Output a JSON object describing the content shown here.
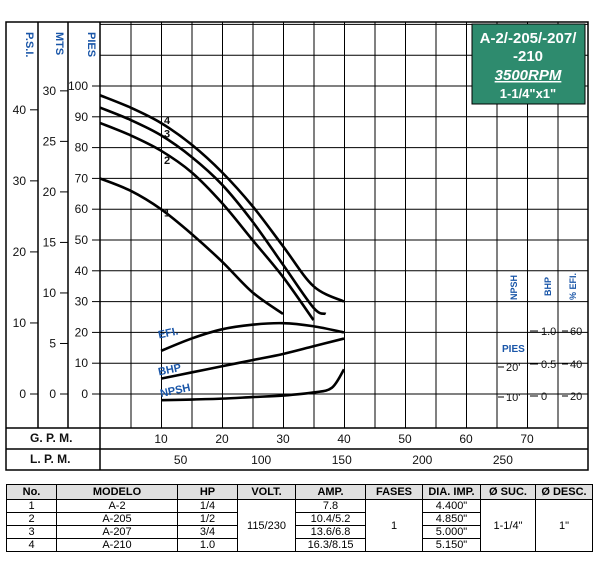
{
  "model_box": {
    "title_line1": "A-2/-205/-207/",
    "title_line2": "-210",
    "rpm": "3500RPM",
    "size": "1-1/4\"x1\"",
    "color": "#2e8b6e"
  },
  "chart_data": {
    "type": "line",
    "left_axes": {
      "psi": {
        "label": "P.S.I.",
        "ticks": [
          0,
          10,
          20,
          30,
          40
        ]
      },
      "mts": {
        "label": "MTS",
        "ticks": [
          0,
          5,
          10,
          15,
          20,
          25,
          30
        ]
      },
      "pies": {
        "label": "PIES",
        "ticks": [
          0,
          10,
          20,
          30,
          40,
          50,
          60,
          70,
          80,
          90,
          100
        ]
      }
    },
    "x_axes": {
      "gpm": {
        "label": "G. P. M.",
        "ticks": [
          10,
          20,
          30,
          40,
          50,
          60,
          70
        ]
      },
      "lpm": {
        "label": "L. P. M.",
        "ticks": [
          50,
          100,
          150,
          200,
          250
        ]
      }
    },
    "right_axes": {
      "npsh": {
        "label": "NPSH",
        "unit": "PIES",
        "ticks": [
          "20'",
          "10'"
        ]
      },
      "bhp": {
        "label": "BHP",
        "ticks": [
          "1.0",
          "0.5",
          "0"
        ]
      },
      "efi": {
        "label": "% EFI.",
        "ticks": [
          "60",
          "40",
          "20"
        ]
      }
    },
    "xlim_gpm": [
      0,
      75
    ],
    "ylim_pies": [
      -5,
      120
    ],
    "grid": true,
    "series": [
      {
        "name": "1",
        "x": [
          0,
          5,
          10,
          15,
          20,
          25,
          30
        ],
        "y": [
          70,
          66,
          60,
          52,
          43,
          33,
          26
        ]
      },
      {
        "name": "2",
        "x": [
          0,
          5,
          10,
          15,
          20,
          25,
          30,
          35
        ],
        "y": [
          88,
          84,
          79,
          72,
          62,
          50,
          38,
          24
        ]
      },
      {
        "name": "3",
        "x": [
          0,
          5,
          10,
          15,
          20,
          25,
          30,
          35,
          37
        ],
        "y": [
          93,
          89,
          84,
          77,
          68,
          56,
          42,
          28,
          26
        ]
      },
      {
        "name": "4",
        "x": [
          0,
          5,
          10,
          15,
          20,
          25,
          30,
          35,
          40
        ],
        "y": [
          97,
          93,
          88,
          81,
          72,
          61,
          48,
          35,
          30
        ]
      }
    ],
    "efficiency_curve": {
      "label": "EFI.",
      "x": [
        10,
        15,
        20,
        25,
        30,
        35,
        40
      ],
      "y": [
        14,
        18,
        21,
        22.5,
        23,
        22,
        20
      ]
    },
    "bhp_curve": {
      "label": "BHP",
      "x": [
        10,
        15,
        20,
        25,
        30,
        35,
        40
      ],
      "y": [
        5,
        7,
        9,
        11,
        13,
        15.5,
        18
      ]
    },
    "npsh_curve": {
      "label": "NPSH",
      "x": [
        10,
        15,
        20,
        25,
        30,
        35,
        38,
        40
      ],
      "y": [
        -2,
        -1.8,
        -1.5,
        -1,
        -0.5,
        0.5,
        2,
        8
      ]
    }
  },
  "table": {
    "headers": [
      "No.",
      "MODELO",
      "HP",
      "VOLT.",
      "AMP.",
      "FASES",
      "DIA. IMP.",
      "Ø SUC.",
      "Ø DESC."
    ],
    "rows": [
      {
        "no": "1",
        "modelo": "A-2",
        "hp": "1/4",
        "amp": "7.8",
        "dia": "4.400\""
      },
      {
        "no": "2",
        "modelo": "A-205",
        "hp": "1/2",
        "amp": "10.4/5.2",
        "dia": "4.850\""
      },
      {
        "no": "3",
        "modelo": "A-207",
        "hp": "3/4",
        "amp": "13.6/6.8",
        "dia": "5.000\""
      },
      {
        "no": "4",
        "modelo": "A-210",
        "hp": "1.0",
        "amp": "16.3/8.15",
        "dia": "5.150\""
      }
    ],
    "volt": "115/230",
    "fases": "1",
    "suc": "1-1/4\"",
    "desc": "1\""
  }
}
